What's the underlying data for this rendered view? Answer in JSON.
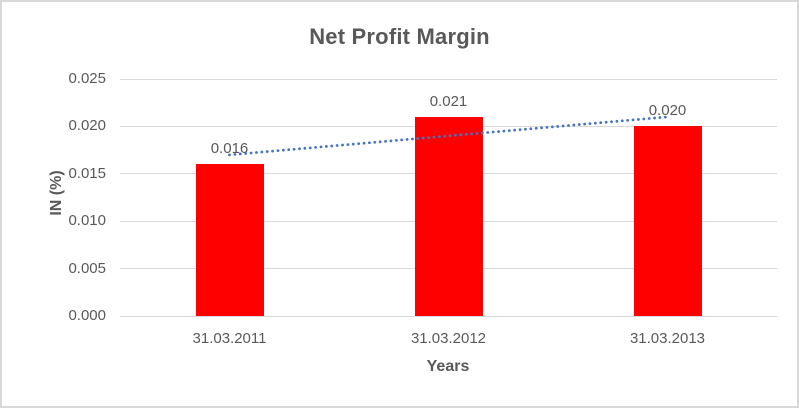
{
  "window": {
    "background": "#ffffff",
    "border_color": "#d9d9d9"
  },
  "colors": {
    "text_gray": "#595959",
    "gridline": "#d9d9d9",
    "bar_red": "#ff0000",
    "trendline_blue": "#4472c4"
  },
  "chart_data": {
    "type": "bar",
    "title": "Net Profit Margin",
    "xlabel": "Years",
    "ylabel": "IN (%)",
    "categories": [
      "31.03.2011",
      "31.03.2012",
      "31.03.2013"
    ],
    "values": [
      0.016,
      0.021,
      0.02
    ],
    "value_labels": [
      "0.016",
      "0.021",
      "0.020"
    ],
    "ylim": [
      0,
      0.025
    ],
    "ytick_step": 0.005,
    "ytick_labels": [
      "0.000",
      "0.005",
      "0.010",
      "0.015",
      "0.020",
      "0.025"
    ],
    "grid": "horizontal",
    "legend": "none",
    "bar_color": "#ff0000",
    "trendline": {
      "type": "linear",
      "style": "dotted",
      "color": "#4472c4",
      "start_value": 0.017,
      "end_value": 0.021
    }
  }
}
